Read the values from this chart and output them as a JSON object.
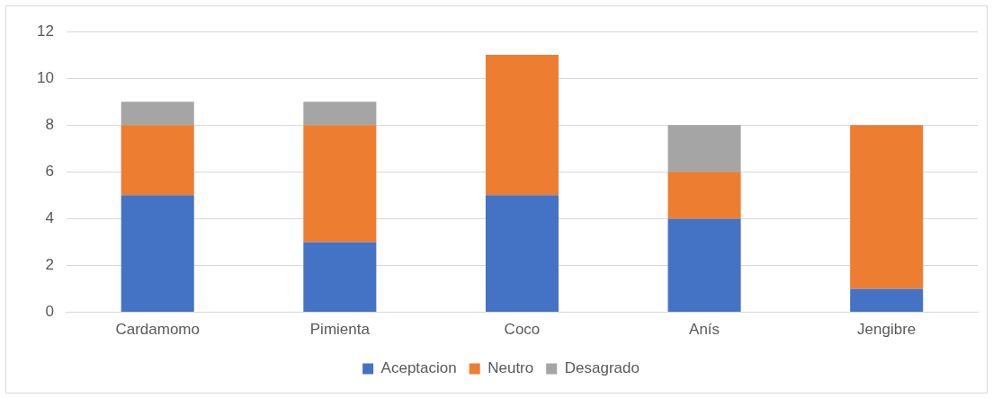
{
  "chart_data": {
    "type": "bar",
    "stacked": true,
    "categories": [
      "Cardamomo",
      "Pimienta",
      "Coco",
      "Anís",
      "Jengibre"
    ],
    "series": [
      {
        "name": "Aceptacion",
        "color": "#4472c4",
        "values": [
          5,
          3,
          5,
          4,
          1
        ]
      },
      {
        "name": "Neutro",
        "color": "#ed7d31",
        "values": [
          3,
          5,
          6,
          2,
          7
        ]
      },
      {
        "name": "Desagrado",
        "color": "#a5a5a5",
        "values": [
          1,
          1,
          0,
          2,
          0
        ]
      }
    ],
    "ylim": [
      0,
      12
    ],
    "yticks": [
      0,
      2,
      4,
      6,
      8,
      10,
      12
    ],
    "grid": "y",
    "legend": "bottom"
  }
}
